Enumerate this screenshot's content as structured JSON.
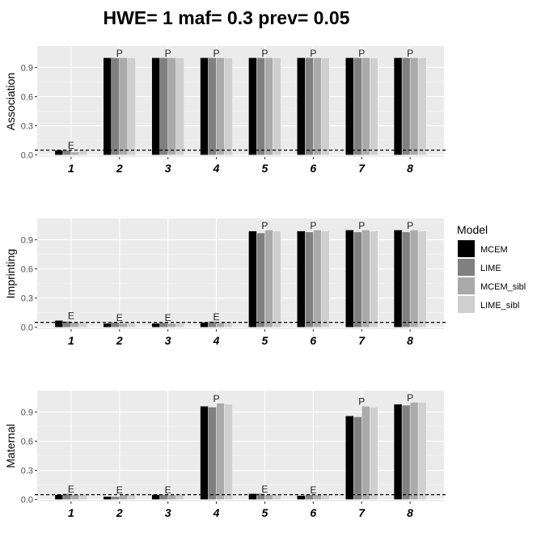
{
  "chart_data": {
    "type": "bar",
    "title": "HWE= 1 maf= 0.3 prev= 0.05",
    "categories": [
      "1",
      "2",
      "3",
      "4",
      "5",
      "6",
      "7",
      "8"
    ],
    "ylim": [
      -0.02,
      1.12
    ],
    "yticks": [
      "0.0",
      "0.3",
      "0.6",
      "0.9"
    ],
    "reference_line": 0.05,
    "legend": {
      "title": "Model",
      "position": "right",
      "entries": [
        {
          "name": "MCEM",
          "color": "#000000"
        },
        {
          "name": "LIME",
          "color": "#808080"
        },
        {
          "name": "MCEM_sibl",
          "color": "#aaaaaa"
        },
        {
          "name": "LIME_sibl",
          "color": "#cfcfcf"
        }
      ]
    },
    "panels": [
      {
        "ylabel": "Association",
        "labels": [
          "E",
          "P",
          "P",
          "P",
          "P",
          "P",
          "P",
          "P"
        ],
        "series": [
          {
            "name": "MCEM",
            "values": [
              0.05,
              1.0,
              1.0,
              1.0,
              1.0,
              1.0,
              1.0,
              1.0
            ]
          },
          {
            "name": "LIME",
            "values": [
              0.05,
              1.0,
              1.0,
              1.0,
              1.0,
              1.0,
              1.0,
              1.0
            ]
          },
          {
            "name": "MCEM_sibl",
            "values": [
              0.03,
              1.0,
              1.0,
              1.0,
              1.0,
              1.0,
              1.0,
              1.0
            ]
          },
          {
            "name": "LIME_sibl",
            "values": [
              0.05,
              1.0,
              1.0,
              1.0,
              1.0,
              1.0,
              1.0,
              1.0
            ]
          }
        ]
      },
      {
        "ylabel": "Imprinting",
        "labels": [
          "E",
          "E",
          "E",
          "E",
          "P",
          "P",
          "P",
          "P"
        ],
        "series": [
          {
            "name": "MCEM",
            "values": [
              0.07,
              0.04,
              0.04,
              0.05,
              0.99,
              0.99,
              1.0,
              1.0
            ]
          },
          {
            "name": "LIME",
            "values": [
              0.06,
              0.05,
              0.05,
              0.06,
              0.97,
              0.98,
              0.98,
              0.98
            ]
          },
          {
            "name": "MCEM_sibl",
            "values": [
              0.05,
              0.04,
              0.04,
              0.05,
              1.0,
              1.0,
              1.0,
              1.0
            ]
          },
          {
            "name": "LIME_sibl",
            "values": [
              0.05,
              0.05,
              0.05,
              0.05,
              0.99,
              0.99,
              0.99,
              0.99
            ]
          }
        ]
      },
      {
        "ylabel": "Maternal",
        "labels": [
          "E",
          "E",
          "E",
          "P",
          "E",
          "E",
          "P",
          "P"
        ],
        "series": [
          {
            "name": "MCEM",
            "values": [
              0.05,
              0.03,
              0.05,
              0.96,
              0.06,
              0.04,
              0.86,
              0.98
            ]
          },
          {
            "name": "LIME",
            "values": [
              0.06,
              0.03,
              0.05,
              0.95,
              0.06,
              0.05,
              0.85,
              0.97
            ]
          },
          {
            "name": "MCEM_sibl",
            "values": [
              0.05,
              0.05,
              0.05,
              0.99,
              0.05,
              0.05,
              0.96,
              1.0
            ]
          },
          {
            "name": "LIME_sibl",
            "values": [
              0.05,
              0.05,
              0.05,
              0.98,
              0.05,
              0.05,
              0.95,
              1.0
            ]
          }
        ]
      }
    ]
  }
}
